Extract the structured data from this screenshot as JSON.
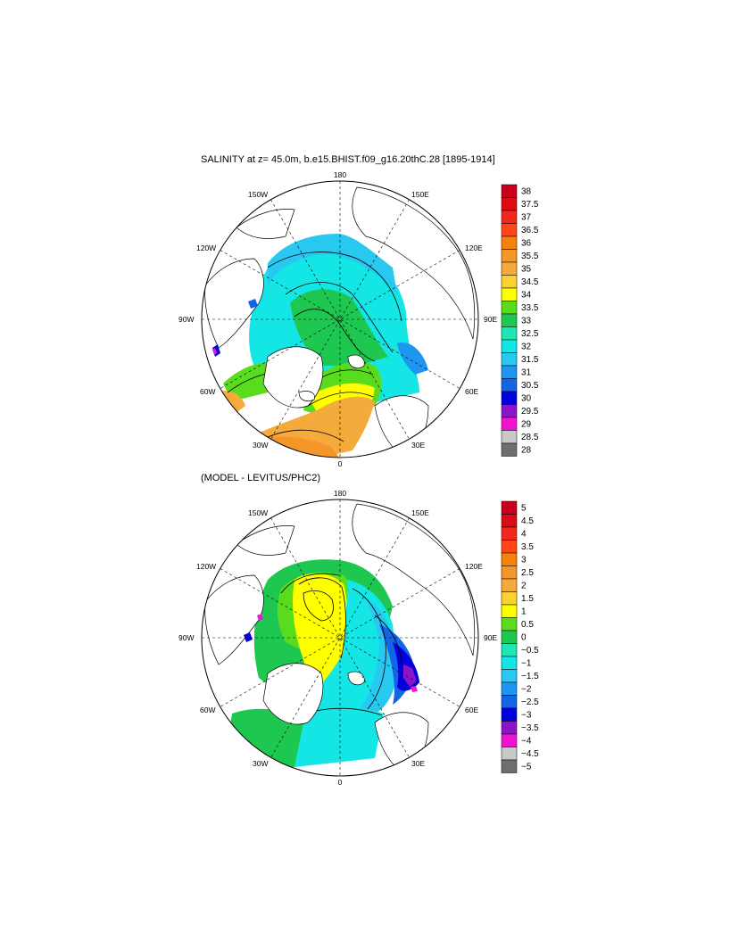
{
  "titles": {
    "top": "SALINITY at z=  45.0m, b.e15.BHIST.f09_g16.20thC.28 [1895-1914]",
    "bottom": "(MODEL - LEVITUS/PHC2)"
  },
  "map_labels": {
    "north": "180",
    "south": "0",
    "east": "90E",
    "west": "90W",
    "ne1": "150E",
    "ne2": "120E",
    "se1": "60E",
    "se2": "30E",
    "nw1": "150W",
    "nw2": "120W",
    "sw1": "60W",
    "sw2": "30W"
  },
  "colorbar_top": {
    "labels": [
      "38",
      "37.5",
      "37",
      "36.5",
      "36",
      "35.5",
      "35",
      "34.5",
      "34",
      "33.5",
      "33",
      "32.5",
      "32",
      "31.5",
      "31",
      "30.5",
      "30",
      "29.5",
      "29",
      "28.5",
      "28"
    ],
    "colors": [
      "#c8001e",
      "#dc0a14",
      "#f0281e",
      "#ff4614",
      "#f5820a",
      "#f59628",
      "#f5aa3c",
      "#fad232",
      "#ffff00",
      "#5adc1e",
      "#1ec850",
      "#1ee6b4",
      "#14e6e6",
      "#28c8f0",
      "#1e96f0",
      "#1464e6",
      "#0000dc",
      "#8c14c8",
      "#f014d2",
      "#c8c8c8",
      "#6e6e6e"
    ]
  },
  "colorbar_bottom": {
    "labels": [
      "5",
      "4.5",
      "4",
      "3.5",
      "3",
      "2.5",
      "2",
      "1.5",
      "1",
      "0.5",
      "0",
      "−0.5",
      "−1",
      "−1.5",
      "−2",
      "−2.5",
      "−3",
      "−3.5",
      "−4",
      "−4.5",
      "−5"
    ],
    "colors": [
      "#c8001e",
      "#dc0a14",
      "#f0281e",
      "#ff4614",
      "#f5820a",
      "#f59628",
      "#f5aa3c",
      "#fad232",
      "#ffff00",
      "#5adc1e",
      "#1ec850",
      "#1ee6b4",
      "#14e6e6",
      "#28c8f0",
      "#1e96f0",
      "#1464e6",
      "#0000dc",
      "#8c14c8",
      "#f014d2",
      "#c8c8c8",
      "#6e6e6e"
    ]
  }
}
